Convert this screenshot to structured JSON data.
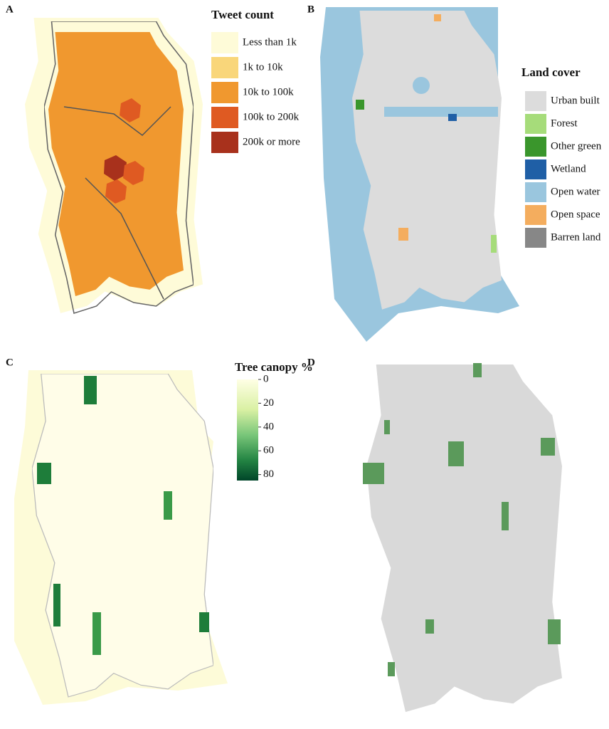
{
  "panels": [
    {
      "label": "A",
      "legend": {
        "title": "Tweet count",
        "items": [
          {
            "name": "Less than 1k",
            "color": "#fefbd8"
          },
          {
            "name": "1k to 10k",
            "color": "#f9d67a"
          },
          {
            "name": "10k to 100k",
            "color": "#f0982f"
          },
          {
            "name": "100k to 200k",
            "color": "#df5a22"
          },
          {
            "name": "200k or more",
            "color": "#a8311c"
          }
        ]
      }
    },
    {
      "label": "B",
      "legend": {
        "title": "Land cover",
        "items": [
          {
            "name": "Urban built",
            "color": "#dcdcdc"
          },
          {
            "name": "Forest",
            "color": "#a6dc7a"
          },
          {
            "name": "Other green",
            "color": "#3a962c"
          },
          {
            "name": "Wetland",
            "color": "#1f5fa6"
          },
          {
            "name": "Open water",
            "color": "#9ac6de"
          },
          {
            "name": "Open space",
            "color": "#f4ad5e"
          },
          {
            "name": "Barren land",
            "color": "#878787"
          }
        ]
      }
    },
    {
      "label": "C",
      "legend": {
        "title": "Tree canopy %",
        "ticks": [
          0,
          20,
          40,
          60,
          80
        ],
        "lim": [
          0,
          85
        ]
      }
    },
    {
      "label": "D"
    }
  ]
}
